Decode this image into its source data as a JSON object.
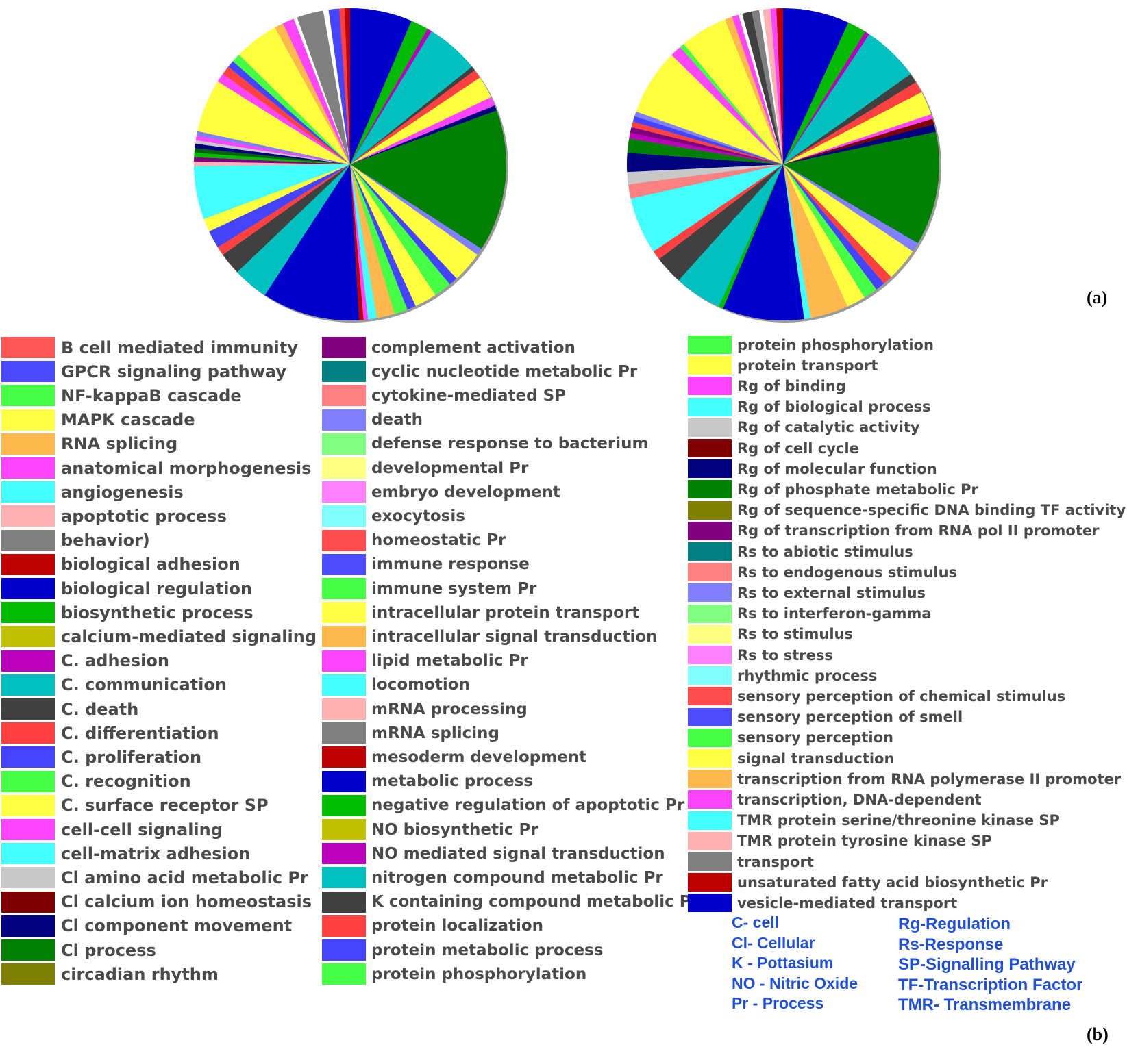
{
  "panel_labels": {
    "a": "(a)",
    "b": "(b)"
  },
  "chart_data": [
    {
      "type": "pie",
      "slices": [
        {
          "color": "#0000cc",
          "value": 7
        },
        {
          "color": "#00bb00",
          "value": 2
        },
        {
          "color": "#bb00bb",
          "value": 0.5
        },
        {
          "color": "#00c0c0",
          "value": 6
        },
        {
          "color": "#404040",
          "value": 0.5
        },
        {
          "color": "#ff4040",
          "value": 1
        },
        {
          "color": "#ffff40",
          "value": 2.5
        },
        {
          "color": "#ff44ff",
          "value": 1
        },
        {
          "color": "#000080",
          "value": 0.6
        },
        {
          "color": "#008000",
          "value": 16
        },
        {
          "color": "#8080ff",
          "value": 0.8
        },
        {
          "color": "#ffff40",
          "value": 3.5
        },
        {
          "color": "#4444ff",
          "value": 1
        },
        {
          "color": "#44ff44",
          "value": 2
        },
        {
          "color": "#ffff40",
          "value": 2.5
        },
        {
          "color": "#4444ff",
          "value": 1
        },
        {
          "color": "#44ff44",
          "value": 1.5
        },
        {
          "color": "#ffb84d",
          "value": 2
        },
        {
          "color": "#44ffff",
          "value": 1
        },
        {
          "color": "#ff44ff",
          "value": 0.5
        },
        {
          "color": "#c00000",
          "value": 0.5
        },
        {
          "color": "#0000cc",
          "value": 11
        },
        {
          "color": "#00c0c0",
          "value": 4
        },
        {
          "color": "#404040",
          "value": 2.5
        },
        {
          "color": "#ff4040",
          "value": 1
        },
        {
          "color": "#4444ff",
          "value": 2
        },
        {
          "color": "#ffff40",
          "value": 1.5
        },
        {
          "color": "#44ffff",
          "value": 6
        },
        {
          "color": "#ffb0b0",
          "value": 0.5
        },
        {
          "color": "#800080",
          "value": 0.5
        },
        {
          "color": "#00bb00",
          "value": 0.5
        },
        {
          "color": "#006400",
          "value": 0.5
        },
        {
          "color": "#000080",
          "value": 0.5
        },
        {
          "color": "#c8c8c8",
          "value": 0.4
        },
        {
          "color": "#ff44ff",
          "value": 0.5
        },
        {
          "color": "#8080ff",
          "value": 0.5
        },
        {
          "color": "#ffff40",
          "value": 6
        },
        {
          "color": "#ff44ff",
          "value": 1
        },
        {
          "color": "#ff4040",
          "value": 1
        },
        {
          "color": "#4444ff",
          "value": 0.8
        },
        {
          "color": "#44ff44",
          "value": 1
        },
        {
          "color": "#ffff40",
          "value": 5
        },
        {
          "color": "#ffb84d",
          "value": 1
        },
        {
          "color": "#ff44ff",
          "value": 1.3
        },
        {
          "color": "#ffffff",
          "value": 0.4
        },
        {
          "color": "#808080",
          "value": 3
        },
        {
          "color": "#ffffff",
          "value": 0.6
        },
        {
          "color": "#4444ff",
          "value": 1.2
        },
        {
          "color": "#ff4040",
          "value": 0.6
        },
        {
          "color": "#c00000",
          "value": 0.6
        }
      ]
    },
    {
      "type": "pie",
      "slices": [
        {
          "color": "#0000cc",
          "value": 7
        },
        {
          "color": "#00bb00",
          "value": 2
        },
        {
          "color": "#bb00bb",
          "value": 0.5
        },
        {
          "color": "#00c0c0",
          "value": 6
        },
        {
          "color": "#404040",
          "value": 1
        },
        {
          "color": "#ff4040",
          "value": 1.2
        },
        {
          "color": "#ffff40",
          "value": 2.5
        },
        {
          "color": "#ff44ff",
          "value": 0.5
        },
        {
          "color": "#800000",
          "value": 0.6
        },
        {
          "color": "#000080",
          "value": 0.8
        },
        {
          "color": "#008000",
          "value": 12
        },
        {
          "color": "#8080ff",
          "value": 1
        },
        {
          "color": "#ffff40",
          "value": 3.5
        },
        {
          "color": "#ff4040",
          "value": 1
        },
        {
          "color": "#4444ff",
          "value": 1
        },
        {
          "color": "#44ff44",
          "value": 1.5
        },
        {
          "color": "#ffff40",
          "value": 2
        },
        {
          "color": "#ffb84d",
          "value": 4
        },
        {
          "color": "#44ffff",
          "value": 0.7
        },
        {
          "color": "#0000cc",
          "value": 0.6
        },
        {
          "color": "#0000cc",
          "value": 8
        },
        {
          "color": "#00bb00",
          "value": 0.5
        },
        {
          "color": "#00c0c0",
          "value": 5
        },
        {
          "color": "#404040",
          "value": 3
        },
        {
          "color": "#ff4040",
          "value": 1
        },
        {
          "color": "#44ffff",
          "value": 6
        },
        {
          "color": "#ff8080",
          "value": 1.5
        },
        {
          "color": "#c8c8c8",
          "value": 1.3
        },
        {
          "color": "#000080",
          "value": 2
        },
        {
          "color": "#008000",
          "value": 1.5
        },
        {
          "color": "#bb00bb",
          "value": 0.6
        },
        {
          "color": "#800080",
          "value": 0.6
        },
        {
          "color": "#ff4040",
          "value": 0.6
        },
        {
          "color": "#4444ff",
          "value": 0.6
        },
        {
          "color": "#8080ff",
          "value": 0.5
        },
        {
          "color": "#ffff40",
          "value": 7
        },
        {
          "color": "#ff44ff",
          "value": 1.2
        },
        {
          "color": "#44ff44",
          "value": 0.5
        },
        {
          "color": "#ffff40",
          "value": 5
        },
        {
          "color": "#ffb84d",
          "value": 0.8
        },
        {
          "color": "#ff44ff",
          "value": 0.7
        },
        {
          "color": "#ffffff",
          "value": 0.4
        },
        {
          "color": "#404040",
          "value": 1
        },
        {
          "color": "#808080",
          "value": 0.8
        },
        {
          "color": "#ffffff",
          "value": 0.4
        },
        {
          "color": "#ffb0b0",
          "value": 0.8
        },
        {
          "color": "#ff44ff",
          "value": 0.6
        },
        {
          "color": "#c00000",
          "value": 0.7
        }
      ]
    }
  ],
  "legend": {
    "col1": [
      {
        "label": "B cell mediated immunity",
        "color": "#ff5555"
      },
      {
        "label": "GPCR  signaling pathway",
        "color": "#4a4aff"
      },
      {
        "label": "NF-kappaB cascade",
        "color": "#44ff44"
      },
      {
        "label": "MAPK cascade",
        "color": "#ffff44"
      },
      {
        "label": "RNA splicing",
        "color": "#ffb84d"
      },
      {
        "label": "anatomical morphogenesis",
        "color": "#ff44ff"
      },
      {
        "label": "angiogenesis",
        "color": "#44ffff"
      },
      {
        "label": "apoptotic process",
        "color": "#ffb0b0"
      },
      {
        "label": "behavior)",
        "color": "#808080"
      },
      {
        "label": "biological adhesion",
        "color": "#c00000"
      },
      {
        "label": "biological regulation",
        "color": "#0000cc"
      },
      {
        "label": "biosynthetic process",
        "color": "#00bb00"
      },
      {
        "label": "calcium-mediated signaling",
        "color": "#c0c000"
      },
      {
        "label": "C. adhesion",
        "color": "#bb00bb"
      },
      {
        "label": "C. communication",
        "color": "#00c0c0"
      },
      {
        "label": "C. death",
        "color": "#404040"
      },
      {
        "label": "C. differentiation",
        "color": "#ff4040"
      },
      {
        "label": "C. proliferation",
        "color": "#4444ff"
      },
      {
        "label": "C. recognition",
        "color": "#44ff44"
      },
      {
        "label": "C. surface receptor SP",
        "color": "#ffff44"
      },
      {
        "label": "cell-cell signaling",
        "color": "#ff44ff"
      },
      {
        "label": "cell-matrix adhesion",
        "color": "#44ffff"
      },
      {
        "label": "Cl amino acid metabolic Pr",
        "color": "#c8c8c8"
      },
      {
        "label": "Cl calcium ion homeostasis",
        "color": "#800000"
      },
      {
        "label": "Cl component movement",
        "color": "#000080"
      },
      {
        "label": "Cl process",
        "color": "#008000"
      },
      {
        "label": "circadian rhythm",
        "color": "#808000"
      }
    ],
    "col2": [
      {
        "label": "complement activation",
        "color": "#800080"
      },
      {
        "label": "cyclic nucleotide metabolic Pr",
        "color": "#008080"
      },
      {
        "label": "cytokine-mediated SP",
        "color": "#ff8080"
      },
      {
        "label": "death",
        "color": "#8080ff"
      },
      {
        "label": "defense response to bacterium",
        "color": "#80ff80"
      },
      {
        "label": "developmental Pr",
        "color": "#ffff80"
      },
      {
        "label": "embryo development",
        "color": "#ff80ff"
      },
      {
        "label": "exocytosis",
        "color": "#80ffff"
      },
      {
        "label": "homeostatic Pr",
        "color": "#ff4d4d"
      },
      {
        "label": "immune response",
        "color": "#4d4dff"
      },
      {
        "label": "immune system Pr",
        "color": "#44ff44"
      },
      {
        "label": "intracellular protein transport",
        "color": "#ffff44"
      },
      {
        "label": "intracellular signal transduction",
        "color": "#ffb84d"
      },
      {
        "label": "lipid metabolic Pr",
        "color": "#ff44ff"
      },
      {
        "label": "locomotion",
        "color": "#44ffff"
      },
      {
        "label": "mRNA processing",
        "color": "#ffb0b0"
      },
      {
        "label": "mRNA splicing",
        "color": "#808080"
      },
      {
        "label": "mesoderm development",
        "color": "#c00000"
      },
      {
        "label": "metabolic process",
        "color": "#0000cc"
      },
      {
        "label": "negative regulation of apoptotic Pr",
        "color": "#00bb00"
      },
      {
        "label": "NO biosynthetic Pr",
        "color": "#c0c000"
      },
      {
        "label": "NO mediated signal transduction",
        "color": "#bb00bb"
      },
      {
        "label": "nitrogen compound metabolic Pr",
        "color": "#00c0c0"
      },
      {
        "label": "K containing compound metabolic Pr",
        "color": "#404040"
      },
      {
        "label": "protein localization",
        "color": "#ff4040"
      },
      {
        "label": "protein metabolic process",
        "color": "#4444ff"
      },
      {
        "label": "protein phosphorylation",
        "color": "#44ff44"
      }
    ],
    "col3": [
      {
        "label": "protein phosphorylation",
        "color": "#44ff44"
      },
      {
        "label": "protein transport",
        "color": "#ffff44"
      },
      {
        "label": "Rg of binding",
        "color": "#ff44ff"
      },
      {
        "label": "Rg of biological process",
        "color": "#44ffff"
      },
      {
        "label": "Rg of catalytic activity",
        "color": "#c8c8c8"
      },
      {
        "label": "Rg of cell cycle",
        "color": "#800000"
      },
      {
        "label": "Rg of molecular function",
        "color": "#000080"
      },
      {
        "label": "Rg of phosphate metabolic Pr",
        "color": "#008000"
      },
      {
        "label": "Rg of sequence-specific DNA binding TF activity",
        "color": "#808000"
      },
      {
        "label": "Rg of transcription from RNA pol II promoter",
        "color": "#800080"
      },
      {
        "label": "Rs to abiotic stimulus",
        "color": "#008080"
      },
      {
        "label": "Rs to endogenous stimulus",
        "color": "#ff8080"
      },
      {
        "label": "Rs to external stimulus",
        "color": "#8080ff"
      },
      {
        "label": "Rs to interferon-gamma",
        "color": "#80ff80"
      },
      {
        "label": "Rs to stimulus",
        "color": "#ffff80"
      },
      {
        "label": "Rs to stress",
        "color": "#ff80ff"
      },
      {
        "label": "rhythmic process",
        "color": "#80ffff"
      },
      {
        "label": "sensory perception of chemical stimulus",
        "color": "#ff4d4d"
      },
      {
        "label": "sensory perception of smell",
        "color": "#4d4dff"
      },
      {
        "label": "sensory perception",
        "color": "#44ff44"
      },
      {
        "label": "signal transduction",
        "color": "#ffff44"
      },
      {
        "label": "transcription from RNA polymerase II promoter",
        "color": "#ffb84d"
      },
      {
        "label": "transcription, DNA-dependent",
        "color": "#ff44ff"
      },
      {
        "label": "TMR protein serine/threonine kinase SP",
        "color": "#44ffff"
      },
      {
        "label": "TMR protein tyrosine kinase SP",
        "color": "#ffb0b0"
      },
      {
        "label": "transport",
        "color": "#808080"
      },
      {
        "label": "unsaturated fatty acid biosynthetic Pr",
        "color": "#c00000"
      },
      {
        "label": "vesicle-mediated transport",
        "color": "#0000cc"
      }
    ]
  },
  "abbreviations": {
    "left": [
      "C- cell",
      "Cl- Cellular",
      "K - Pottasium",
      "NO - Nitric Oxide",
      "Pr - Process"
    ],
    "right": [
      "Rg-Regulation",
      "Rs-Response",
      "SP-Signalling Pathway",
      "TF-Transcription Factor",
      "TMR- Transmembrane"
    ],
    "color": "#1f4fe0"
  }
}
